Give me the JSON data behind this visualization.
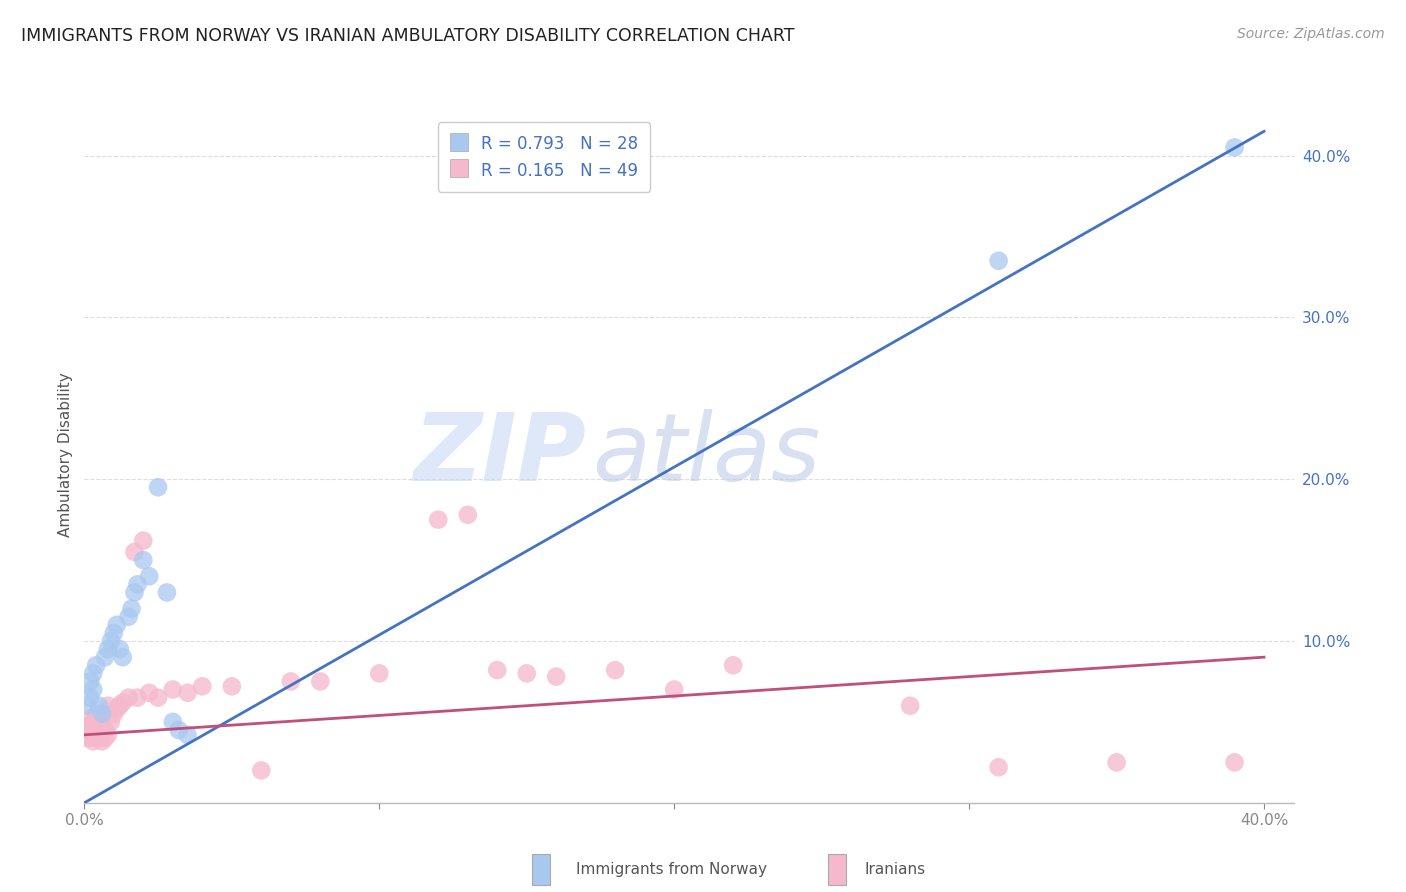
{
  "title": "IMMIGRANTS FROM NORWAY VS IRANIAN AMBULATORY DISABILITY CORRELATION CHART",
  "source": "Source: ZipAtlas.com",
  "ylabel": "Ambulatory Disability",
  "norway_color": "#a8c8f0",
  "norway_line_color": "#4472c4",
  "iran_color": "#f5b8cc",
  "iran_line_color": "#c0507a",
  "norway_R": 0.793,
  "norway_N": 28,
  "iran_R": 0.165,
  "iran_N": 49,
  "norway_scatter_x": [
    0.001,
    0.002,
    0.002,
    0.003,
    0.003,
    0.004,
    0.005,
    0.006,
    0.007,
    0.008,
    0.009,
    0.01,
    0.011,
    0.012,
    0.013,
    0.015,
    0.016,
    0.017,
    0.018,
    0.02,
    0.022,
    0.025,
    0.028,
    0.03,
    0.032,
    0.035,
    0.31,
    0.39
  ],
  "norway_scatter_y": [
    0.06,
    0.065,
    0.075,
    0.07,
    0.08,
    0.085,
    0.06,
    0.055,
    0.09,
    0.095,
    0.1,
    0.105,
    0.11,
    0.095,
    0.09,
    0.115,
    0.12,
    0.13,
    0.135,
    0.15,
    0.14,
    0.195,
    0.13,
    0.05,
    0.045,
    0.042,
    0.335,
    0.405
  ],
  "iran_scatter_x": [
    0.001,
    0.001,
    0.002,
    0.002,
    0.002,
    0.003,
    0.003,
    0.003,
    0.004,
    0.004,
    0.005,
    0.005,
    0.006,
    0.006,
    0.007,
    0.007,
    0.008,
    0.008,
    0.009,
    0.01,
    0.011,
    0.012,
    0.013,
    0.015,
    0.017,
    0.018,
    0.02,
    0.022,
    0.025,
    0.03,
    0.035,
    0.04,
    0.05,
    0.06,
    0.07,
    0.08,
    0.1,
    0.12,
    0.13,
    0.14,
    0.15,
    0.16,
    0.18,
    0.2,
    0.22,
    0.28,
    0.31,
    0.35,
    0.39
  ],
  "iran_scatter_y": [
    0.04,
    0.045,
    0.042,
    0.048,
    0.052,
    0.038,
    0.043,
    0.05,
    0.04,
    0.055,
    0.04,
    0.048,
    0.038,
    0.052,
    0.04,
    0.045,
    0.042,
    0.06,
    0.05,
    0.055,
    0.058,
    0.06,
    0.062,
    0.065,
    0.155,
    0.065,
    0.162,
    0.068,
    0.065,
    0.07,
    0.068,
    0.072,
    0.072,
    0.02,
    0.075,
    0.075,
    0.08,
    0.175,
    0.178,
    0.082,
    0.08,
    0.078,
    0.082,
    0.07,
    0.085,
    0.06,
    0.022,
    0.025,
    0.025
  ],
  "norway_line_x": [
    0.0,
    0.4
  ],
  "norway_line_y": [
    0.0,
    0.415
  ],
  "iran_line_x": [
    0.0,
    0.4
  ],
  "iran_line_y": [
    0.042,
    0.09
  ],
  "xlim": [
    0.0,
    0.41
  ],
  "ylim": [
    0.0,
    0.43
  ],
  "ytick_vals": [
    0.0,
    0.1,
    0.2,
    0.3,
    0.4
  ],
  "ytick_labels": [
    "",
    "10.0%",
    "20.0%",
    "30.0%",
    "40.0%"
  ],
  "xtick_vals": [
    0.0,
    0.1,
    0.2,
    0.3,
    0.4
  ],
  "xtick_labels": [
    "0.0%",
    "",
    "",
    "",
    "40.0%"
  ],
  "watermark_text": "ZIPatlas",
  "background_color": "#ffffff",
  "grid_color": "#dddddd"
}
